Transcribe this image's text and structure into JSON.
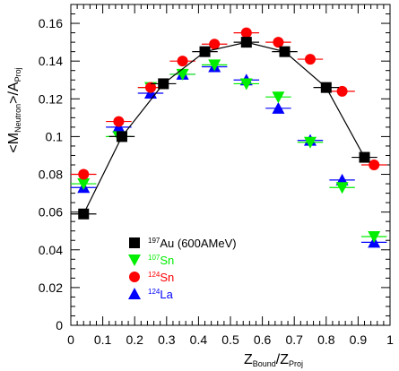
{
  "chart_data": {
    "type": "scatter",
    "title": "",
    "xlabel": {
      "main1": "Z",
      "sub1": "Bound",
      "sep": "/Z",
      "sub2": "Proj"
    },
    "ylabel": {
      "pre": "<M",
      "sub1": "Neutron",
      "mid": ">/A",
      "sub2": "Proj"
    },
    "xlim": [
      0,
      1
    ],
    "ylim": [
      0,
      0.17
    ],
    "xticks": [
      "0",
      "0.1",
      "0.2",
      "0.3",
      "0.4",
      "0.5",
      "0.6",
      "0.7",
      "0.8",
      "0.9",
      "1"
    ],
    "yticks": [
      "0",
      "0.02",
      "0.04",
      "0.06",
      "0.08",
      "0.1",
      "0.12",
      "0.14",
      "0.16"
    ],
    "legend_position": "lower-left",
    "series": [
      {
        "sup": "197",
        "name": "Au (600AMeV)",
        "text_color": "#000000",
        "marker": "square",
        "color": "#000000",
        "line": true,
        "x": [
          0.04,
          0.16,
          0.29,
          0.42,
          0.55,
          0.67,
          0.8,
          0.92
        ],
        "y": [
          0.059,
          0.1,
          0.128,
          0.145,
          0.15,
          0.145,
          0.126,
          0.089
        ],
        "xerr": [
          0.04,
          0.04,
          0.04,
          0.04,
          0.04,
          0.04,
          0.04,
          0.04
        ]
      },
      {
        "sup": "107",
        "name": "Sn",
        "text_color": "#00ee00",
        "marker": "triangle-down",
        "color": "#00ee00",
        "line": false,
        "x": [
          0.04,
          0.15,
          0.25,
          0.35,
          0.45,
          0.55,
          0.65,
          0.75,
          0.85,
          0.95
        ],
        "y": [
          0.075,
          0.1,
          0.126,
          0.133,
          0.138,
          0.128,
          0.121,
          0.097,
          0.073,
          0.047
        ],
        "xerr": [
          0.04,
          0.04,
          0.04,
          0.04,
          0.04,
          0.04,
          0.04,
          0.04,
          0.04,
          0.04
        ]
      },
      {
        "sup": "124",
        "name": "Sn",
        "text_color": "#ff0000",
        "marker": "circle",
        "color": "#ff0000",
        "line": false,
        "x": [
          0.04,
          0.15,
          0.25,
          0.35,
          0.45,
          0.55,
          0.65,
          0.75,
          0.85,
          0.95
        ],
        "y": [
          0.08,
          0.108,
          0.126,
          0.14,
          0.149,
          0.155,
          0.15,
          0.141,
          0.124,
          0.085
        ],
        "xerr": [
          0.04,
          0.04,
          0.04,
          0.04,
          0.04,
          0.04,
          0.04,
          0.04,
          0.04,
          0.04
        ]
      },
      {
        "sup": "124",
        "name": "La",
        "text_color": "#0000ff",
        "marker": "triangle-up",
        "color": "#0000ff",
        "line": false,
        "x": [
          0.04,
          0.15,
          0.25,
          0.35,
          0.45,
          0.55,
          0.65,
          0.75,
          0.85,
          0.95
        ],
        "y": [
          0.073,
          0.105,
          0.123,
          0.133,
          0.137,
          0.13,
          0.115,
          0.098,
          0.077,
          0.044
        ],
        "xerr": [
          0.04,
          0.04,
          0.04,
          0.04,
          0.04,
          0.04,
          0.04,
          0.04,
          0.04,
          0.04
        ]
      }
    ]
  }
}
